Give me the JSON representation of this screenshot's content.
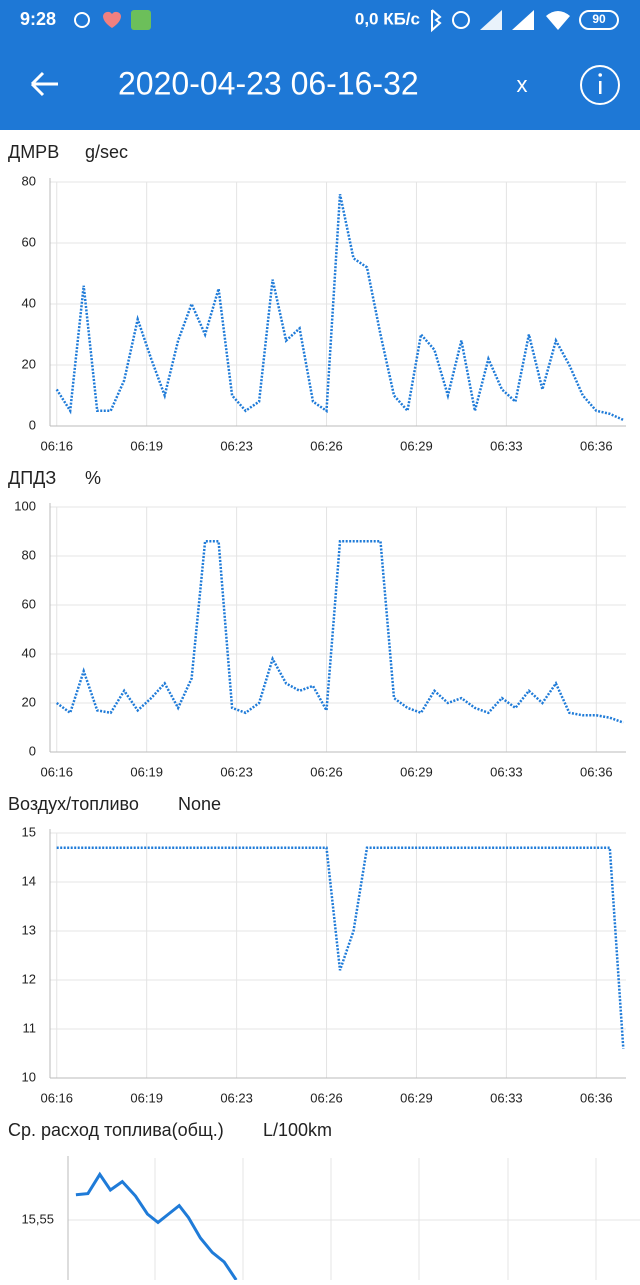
{
  "status_bar": {
    "time": "9:28",
    "speed": "0,0 КБ/с",
    "battery": "90"
  },
  "app_bar": {
    "title": "2020-04-23 06-16-32",
    "close": "x"
  },
  "chart_data": [
    {
      "type": "line",
      "title": "ДМРВ",
      "unit": "g/sec",
      "color": "#1f7bd8",
      "grid": true,
      "x": [
        0,
        0.5,
        1,
        1.5,
        2,
        2.5,
        3,
        3.5,
        4,
        4.5,
        5,
        5.5,
        6,
        6.5,
        7,
        7.5,
        8,
        8.5,
        9,
        9.5,
        10,
        10.5,
        11,
        11.5,
        12,
        12.5,
        13,
        13.5,
        14,
        14.5,
        15,
        15.5,
        16,
        16.5,
        17,
        17.5,
        18,
        18.5,
        19,
        19.5,
        20,
        20.5,
        21
      ],
      "values": [
        12,
        5,
        46,
        5,
        5,
        15,
        35,
        22,
        10,
        28,
        40,
        30,
        45,
        10,
        5,
        8,
        48,
        28,
        32,
        8,
        5,
        76,
        55,
        52,
        30,
        10,
        5,
        30,
        25,
        10,
        28,
        5,
        22,
        12,
        8,
        30,
        12,
        28,
        20,
        10,
        5,
        4,
        2
      ],
      "xlim": [
        -0.25,
        21.1
      ],
      "ylim": [
        0,
        80
      ],
      "yticks": [
        0,
        20,
        40,
        60,
        80
      ],
      "xticks": [
        {
          "value": 0,
          "label": "06:16"
        },
        {
          "value": 3.333,
          "label": "06:19"
        },
        {
          "value": 6.667,
          "label": "06:23"
        },
        {
          "value": 10,
          "label": "06:26"
        },
        {
          "value": 13.333,
          "label": "06:29"
        },
        {
          "value": 16.667,
          "label": "06:33"
        },
        {
          "value": 20,
          "label": "06:36"
        }
      ]
    },
    {
      "type": "line",
      "title": "ДПДЗ",
      "unit": "%",
      "color": "#1f7bd8",
      "grid": true,
      "x": [
        0,
        0.5,
        1,
        1.5,
        2,
        2.5,
        3,
        3.5,
        4,
        4.5,
        5,
        5.5,
        6,
        6.5,
        7,
        7.5,
        8,
        8.5,
        9,
        9.5,
        10,
        10.5,
        11,
        11.5,
        12,
        12.5,
        13,
        13.5,
        14,
        14.5,
        15,
        15.5,
        16,
        16.5,
        17,
        17.5,
        18,
        18.5,
        19,
        19.5,
        20,
        20.5,
        21
      ],
      "values": [
        20,
        16,
        33,
        17,
        16,
        25,
        17,
        22,
        28,
        18,
        30,
        86,
        86,
        18,
        16,
        20,
        38,
        28,
        25,
        27,
        17,
        86,
        86,
        86,
        86,
        22,
        18,
        16,
        25,
        20,
        22,
        18,
        16,
        22,
        18,
        25,
        20,
        28,
        16,
        15,
        15,
        14,
        12
      ],
      "xlim": [
        -0.25,
        21.1
      ],
      "ylim": [
        0,
        100
      ],
      "yticks": [
        0,
        20,
        40,
        60,
        80,
        100
      ],
      "xticks": [
        {
          "value": 0,
          "label": "06:16"
        },
        {
          "value": 3.333,
          "label": "06:19"
        },
        {
          "value": 6.667,
          "label": "06:23"
        },
        {
          "value": 10,
          "label": "06:26"
        },
        {
          "value": 13.333,
          "label": "06:29"
        },
        {
          "value": 16.667,
          "label": "06:33"
        },
        {
          "value": 20,
          "label": "06:36"
        }
      ]
    },
    {
      "type": "line",
      "title": "Воздух/топливо",
      "unit": "None",
      "color": "#1f7bd8",
      "grid": true,
      "x": [
        0,
        0.5,
        1,
        1.5,
        2,
        2.5,
        3,
        3.5,
        4,
        4.5,
        5,
        5.5,
        6,
        6.5,
        7,
        7.5,
        8,
        8.5,
        9,
        9.5,
        10,
        10.5,
        11,
        11.5,
        12,
        12.5,
        13,
        13.5,
        14,
        14.5,
        15,
        15.5,
        16,
        16.5,
        17,
        17.5,
        18,
        18.5,
        19,
        19.5,
        20,
        20.5,
        21
      ],
      "values": [
        14.7,
        14.7,
        14.7,
        14.7,
        14.7,
        14.7,
        14.7,
        14.7,
        14.7,
        14.7,
        14.7,
        14.7,
        14.7,
        14.7,
        14.7,
        14.7,
        14.7,
        14.7,
        14.7,
        14.7,
        14.7,
        12.2,
        13.0,
        14.7,
        14.7,
        14.7,
        14.7,
        14.7,
        14.7,
        14.7,
        14.7,
        14.7,
        14.7,
        14.7,
        14.7,
        14.7,
        14.7,
        14.7,
        14.7,
        14.7,
        14.7,
        14.7,
        10.6
      ],
      "xlim": [
        -0.25,
        21.1
      ],
      "ylim": [
        10,
        15
      ],
      "yticks": [
        10,
        11,
        12,
        13,
        14,
        15
      ],
      "xticks": [
        {
          "value": 0,
          "label": "06:16"
        },
        {
          "value": 3.333,
          "label": "06:19"
        },
        {
          "value": 6.667,
          "label": "06:23"
        },
        {
          "value": 10,
          "label": "06:26"
        },
        {
          "value": 13.333,
          "label": "06:29"
        },
        {
          "value": 16.667,
          "label": "06:33"
        },
        {
          "value": 20,
          "label": "06:36"
        }
      ]
    },
    {
      "type": "line",
      "title": "Ср. расход топлива(общ.)",
      "unit": "L/100km",
      "color": "#1f7bd8",
      "grid": true,
      "x": [
        0.3,
        0.75,
        1.2,
        1.6,
        2.05,
        2.55,
        3.0,
        3.4,
        3.8,
        4.2,
        4.55,
        5.0,
        5.45,
        5.9,
        6.35
      ],
      "values": [
        15.571,
        15.572,
        15.588,
        15.575,
        15.582,
        15.57,
        15.555,
        15.548,
        15.555,
        15.562,
        15.552,
        15.535,
        15.523,
        15.515,
        15.5
      ],
      "xlim": [
        0,
        21.6
      ],
      "ylim": [
        15.5,
        15.6
      ],
      "yticks": [
        {
          "value": 15.55,
          "label": "15,55"
        }
      ]
    }
  ]
}
